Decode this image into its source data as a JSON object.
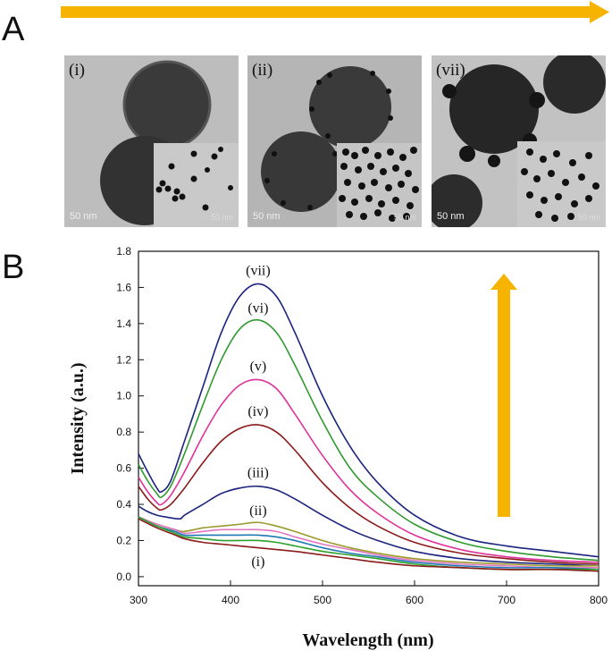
{
  "panels": {
    "a_letter": "A",
    "b_letter": "B",
    "micrographs": [
      {
        "label": "(i)",
        "scale": "50 nm",
        "inset_scale": "50 nm"
      },
      {
        "label": "(ii)",
        "scale": "50 nm",
        "inset_scale": "50 nm"
      },
      {
        "label": "(vii)",
        "scale": "50 nm",
        "inset_scale": "50 nm"
      }
    ]
  },
  "colors": {
    "arrow": "#f6b400",
    "series": [
      "#8b1a1a",
      "#1f77b4",
      "#2ca02c",
      "#7b2cbf",
      "#e377c2",
      "#9a9a2a",
      "#1a237e",
      "#8b1a1a",
      "#e0309a",
      "#2e9a2e",
      "#1a237e"
    ]
  },
  "chart_data": {
    "type": "line",
    "xlabel": "Wavelength (nm)",
    "ylabel": "Intensity (a.u.)",
    "xlim": [
      300,
      800
    ],
    "ylim": [
      -0.05,
      1.8
    ],
    "xticks": [
      300,
      400,
      500,
      600,
      700,
      800
    ],
    "yticks": [
      0.0,
      0.2,
      0.4,
      0.6,
      0.8,
      1.0,
      1.2,
      1.4,
      1.6,
      1.8
    ],
    "series": [
      {
        "label": "(vii)",
        "x": [
          300,
          310,
          320,
          325,
          335,
          350,
          370,
          390,
          410,
          430,
          450,
          470,
          500,
          530,
          560,
          600,
          650,
          700,
          750,
          800
        ],
        "y": [
          0.68,
          0.58,
          0.49,
          0.47,
          0.53,
          0.75,
          1.05,
          1.35,
          1.55,
          1.62,
          1.55,
          1.35,
          1.0,
          0.72,
          0.52,
          0.34,
          0.22,
          0.17,
          0.14,
          0.11
        ]
      },
      {
        "label": "(vi)",
        "x": [
          300,
          310,
          320,
          325,
          335,
          350,
          370,
          390,
          410,
          430,
          450,
          470,
          500,
          530,
          560,
          600,
          650,
          700,
          750,
          800
        ],
        "y": [
          0.62,
          0.53,
          0.46,
          0.44,
          0.5,
          0.68,
          0.95,
          1.2,
          1.37,
          1.42,
          1.35,
          1.17,
          0.86,
          0.6,
          0.44,
          0.29,
          0.19,
          0.14,
          0.11,
          0.09
        ]
      },
      {
        "label": "(v)",
        "x": [
          300,
          310,
          320,
          325,
          335,
          350,
          370,
          390,
          410,
          430,
          450,
          470,
          500,
          530,
          560,
          600,
          650,
          700,
          750,
          800
        ],
        "y": [
          0.55,
          0.47,
          0.41,
          0.4,
          0.45,
          0.58,
          0.78,
          0.95,
          1.06,
          1.09,
          1.04,
          0.9,
          0.67,
          0.48,
          0.35,
          0.23,
          0.15,
          0.11,
          0.09,
          0.08
        ]
      },
      {
        "label": "(iv)",
        "x": [
          300,
          310,
          320,
          325,
          335,
          350,
          370,
          390,
          410,
          430,
          450,
          470,
          500,
          530,
          560,
          600,
          650,
          700,
          750,
          800
        ],
        "y": [
          0.5,
          0.43,
          0.38,
          0.37,
          0.4,
          0.49,
          0.63,
          0.75,
          0.82,
          0.84,
          0.8,
          0.7,
          0.52,
          0.38,
          0.28,
          0.19,
          0.13,
          0.1,
          0.08,
          0.07
        ]
      },
      {
        "label": "(iii)",
        "x": [
          300,
          310,
          320,
          330,
          345,
          350,
          370,
          390,
          410,
          430,
          450,
          470,
          500,
          530,
          560,
          600,
          650,
          700,
          750,
          800
        ],
        "y": [
          0.39,
          0.36,
          0.34,
          0.33,
          0.32,
          0.34,
          0.4,
          0.46,
          0.49,
          0.5,
          0.48,
          0.43,
          0.34,
          0.26,
          0.2,
          0.14,
          0.1,
          0.08,
          0.07,
          0.06
        ]
      },
      {
        "label": "(ii)",
        "x": [
          300,
          320,
          340,
          350,
          370,
          390,
          410,
          430,
          450,
          470,
          500,
          530,
          560,
          600,
          650,
          700,
          750,
          800
        ],
        "y": [
          0.33,
          0.29,
          0.26,
          0.25,
          0.27,
          0.28,
          0.29,
          0.3,
          0.28,
          0.25,
          0.2,
          0.16,
          0.13,
          0.1,
          0.08,
          0.07,
          0.06,
          0.06
        ]
      },
      {
        "label": "",
        "x": [
          300,
          320,
          340,
          350,
          370,
          390,
          410,
          430,
          450,
          470,
          500,
          530,
          560,
          600,
          650,
          700,
          750,
          800
        ],
        "y": [
          0.33,
          0.29,
          0.26,
          0.24,
          0.25,
          0.26,
          0.26,
          0.26,
          0.25,
          0.22,
          0.18,
          0.15,
          0.12,
          0.09,
          0.07,
          0.06,
          0.05,
          0.05
        ]
      },
      {
        "label": "",
        "x": [
          300,
          320,
          340,
          350,
          370,
          390,
          410,
          430,
          450,
          470,
          500,
          530,
          560,
          600,
          650,
          700,
          750,
          800
        ],
        "y": [
          0.33,
          0.28,
          0.25,
          0.23,
          0.23,
          0.23,
          0.23,
          0.23,
          0.22,
          0.2,
          0.16,
          0.13,
          0.11,
          0.08,
          0.06,
          0.05,
          0.05,
          0.04
        ]
      },
      {
        "label": "",
        "x": [
          300,
          320,
          340,
          350,
          370,
          390,
          410,
          430,
          450,
          470,
          500,
          530,
          560,
          600,
          650,
          700,
          750,
          800
        ],
        "y": [
          0.33,
          0.28,
          0.24,
          0.22,
          0.21,
          0.2,
          0.2,
          0.2,
          0.19,
          0.17,
          0.14,
          0.12,
          0.1,
          0.07,
          0.05,
          0.04,
          0.04,
          0.04
        ]
      },
      {
        "label": "(i)",
        "x": [
          300,
          320,
          340,
          350,
          370,
          390,
          410,
          430,
          450,
          470,
          500,
          530,
          560,
          600,
          650,
          700,
          750,
          800
        ],
        "y": [
          0.32,
          0.27,
          0.23,
          0.21,
          0.19,
          0.18,
          0.17,
          0.16,
          0.15,
          0.14,
          0.12,
          0.1,
          0.08,
          0.06,
          0.05,
          0.04,
          0.04,
          0.03
        ]
      }
    ],
    "annotations": [
      "(vii)",
      "(vi)",
      "(v)",
      "(iv)",
      "(iii)",
      "(ii)",
      "(i)"
    ]
  }
}
